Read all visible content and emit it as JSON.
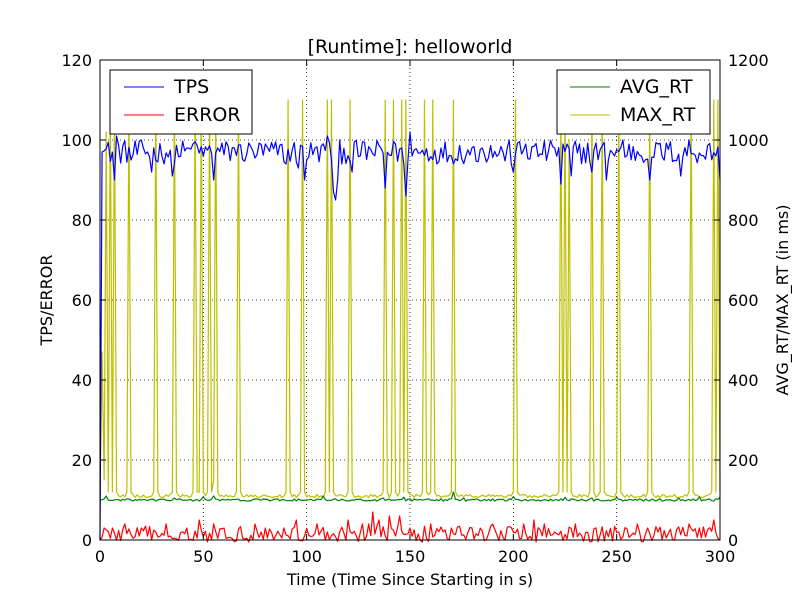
{
  "chart_data": {
    "type": "line",
    "title": "[Runtime]: helloworld",
    "xlabel": "Time (Time Since Starting in s)",
    "ylabel_left": "TPS/ERROR",
    "ylabel_right": "AVG_RT/MAX_RT (in ms)",
    "xlim": [
      0,
      300
    ],
    "ylim_left": [
      0,
      120
    ],
    "ylim_right": [
      0,
      1200
    ],
    "x_ticks": [
      "0",
      "50",
      "100",
      "150",
      "200",
      "250",
      "300"
    ],
    "y_ticks_left": [
      "0",
      "20",
      "40",
      "60",
      "80",
      "100",
      "120"
    ],
    "y_ticks_right": [
      "0",
      "200",
      "400",
      "600",
      "800",
      "1000",
      "1200"
    ],
    "grid": true,
    "legend_left": {
      "placement": "upper-left",
      "entries": [
        "TPS",
        "ERROR"
      ]
    },
    "legend_right": {
      "placement": "upper-right",
      "entries": [
        "AVG_RT",
        "MAX_RT"
      ]
    },
    "x_step": 1,
    "series": [
      {
        "name": "TPS",
        "axis": "left",
        "color": "#0000ff",
        "baseline": 97,
        "jitter": 3,
        "overrides": [
          [
            0,
            0
          ],
          [
            1,
            97
          ],
          [
            7,
            90
          ],
          [
            8,
            101
          ],
          [
            15,
            95
          ],
          [
            25,
            92
          ],
          [
            35,
            91
          ],
          [
            45,
            99
          ],
          [
            55,
            90
          ],
          [
            65,
            98
          ],
          [
            90,
            94
          ],
          [
            96,
            93
          ],
          [
            99,
            90
          ],
          [
            104,
            98
          ],
          [
            110,
            101
          ],
          [
            112,
            95
          ],
          [
            113,
            87
          ],
          [
            114,
            85
          ],
          [
            115,
            90
          ],
          [
            122,
            92
          ],
          [
            138,
            88
          ],
          [
            143,
            99
          ],
          [
            147,
            94
          ],
          [
            148,
            86
          ],
          [
            150,
            102
          ],
          [
            151,
            96
          ],
          [
            165,
            98
          ],
          [
            170,
            96
          ],
          [
            185,
            98
          ],
          [
            195,
            97
          ],
          [
            199,
            94
          ],
          [
            200,
            92
          ],
          [
            206,
            99
          ],
          [
            220,
            98
          ],
          [
            223,
            89
          ],
          [
            228,
            91
          ],
          [
            238,
            92
          ],
          [
            245,
            90
          ],
          [
            253,
            100
          ],
          [
            266,
            90
          ],
          [
            270,
            99
          ],
          [
            281,
            91
          ],
          [
            285,
            100
          ],
          [
            300,
            90
          ]
        ]
      },
      {
        "name": "ERROR",
        "axis": "left",
        "color": "#ff0000",
        "baseline": 1.5,
        "jitter": 2,
        "overrides": [
          [
            0,
            0
          ],
          [
            2,
            3
          ],
          [
            12,
            4
          ],
          [
            20,
            3
          ],
          [
            32,
            4
          ],
          [
            42,
            3
          ],
          [
            48,
            5
          ],
          [
            55,
            4
          ],
          [
            60,
            3
          ],
          [
            75,
            4
          ],
          [
            80,
            3
          ],
          [
            95,
            5
          ],
          [
            105,
            4
          ],
          [
            110,
            2
          ],
          [
            120,
            5
          ],
          [
            127,
            4
          ],
          [
            129,
            1
          ],
          [
            130,
            4
          ],
          [
            132,
            7
          ],
          [
            135,
            5
          ],
          [
            140,
            6
          ],
          [
            145,
            6
          ],
          [
            150,
            3
          ],
          [
            160,
            4
          ],
          [
            170,
            3
          ],
          [
            180,
            3
          ],
          [
            190,
            4
          ],
          [
            200,
            2
          ],
          [
            205,
            4
          ],
          [
            210,
            5
          ],
          [
            215,
            4
          ],
          [
            220,
            2
          ],
          [
            230,
            4
          ],
          [
            240,
            3
          ],
          [
            250,
            2
          ],
          [
            260,
            4
          ],
          [
            265,
            3
          ],
          [
            270,
            2
          ],
          [
            285,
            4
          ],
          [
            290,
            3
          ],
          [
            297,
            5
          ],
          [
            300,
            0
          ]
        ]
      },
      {
        "name": "AVG_RT",
        "axis": "right",
        "color": "#008000",
        "baseline": 100,
        "jitter": 3,
        "overrides": [
          [
            0,
            100
          ],
          [
            3,
            110
          ],
          [
            36,
            105
          ],
          [
            50,
            108
          ],
          [
            55,
            110
          ],
          [
            108,
            110
          ],
          [
            137,
            105
          ],
          [
            147,
            107
          ],
          [
            171,
            120
          ],
          [
            176,
            105
          ],
          [
            200,
            108
          ],
          [
            225,
            107
          ],
          [
            238,
            105
          ],
          [
            250,
            107
          ],
          [
            280,
            105
          ],
          [
            290,
            108
          ],
          [
            298,
            103
          ],
          [
            300,
            107
          ]
        ]
      },
      {
        "name": "MAX_RT",
        "axis": "right",
        "color": "#bfbf00",
        "baseline": 110,
        "jitter": 4,
        "overrides": [
          [
            0,
            110
          ],
          [
            1,
            470
          ],
          [
            2,
            150
          ],
          [
            3,
            1020
          ],
          [
            4,
            120
          ],
          [
            5,
            1100
          ],
          [
            6,
            120
          ],
          [
            7,
            1100
          ],
          [
            8,
            120
          ],
          [
            13,
            120
          ],
          [
            14,
            1100
          ],
          [
            15,
            120
          ],
          [
            26,
            120
          ],
          [
            27,
            1100
          ],
          [
            28,
            120
          ],
          [
            35,
            120
          ],
          [
            36,
            1100
          ],
          [
            37,
            120
          ],
          [
            45,
            120
          ],
          [
            46,
            1100
          ],
          [
            47,
            120
          ],
          [
            48,
            120
          ],
          [
            49,
            1100
          ],
          [
            50,
            120
          ],
          [
            52,
            120
          ],
          [
            53,
            1100
          ],
          [
            54,
            120
          ],
          [
            55,
            150
          ],
          [
            56,
            1100
          ],
          [
            57,
            120
          ],
          [
            66,
            120
          ],
          [
            67,
            1100
          ],
          [
            68,
            120
          ],
          [
            90,
            120
          ],
          [
            91,
            1100
          ],
          [
            92,
            120
          ],
          [
            97,
            120
          ],
          [
            98,
            1100
          ],
          [
            99,
            120
          ],
          [
            109,
            120
          ],
          [
            110,
            1100
          ],
          [
            111,
            120
          ],
          [
            112,
            1100
          ],
          [
            113,
            120
          ],
          [
            120,
            120
          ],
          [
            121,
            1100
          ],
          [
            122,
            120
          ],
          [
            137,
            120
          ],
          [
            138,
            1100
          ],
          [
            139,
            120
          ],
          [
            141,
            120
          ],
          [
            142,
            1100
          ],
          [
            143,
            120
          ],
          [
            145,
            120
          ],
          [
            146,
            1100
          ],
          [
            147,
            120
          ],
          [
            148,
            1100
          ],
          [
            149,
            120
          ],
          [
            156,
            120
          ],
          [
            157,
            1100
          ],
          [
            158,
            120
          ],
          [
            160,
            120
          ],
          [
            161,
            1100
          ],
          [
            162,
            120
          ],
          [
            170,
            120
          ],
          [
            171,
            1100
          ],
          [
            172,
            120
          ],
          [
            200,
            120
          ],
          [
            201,
            1100
          ],
          [
            202,
            120
          ],
          [
            222,
            120
          ],
          [
            223,
            1100
          ],
          [
            224,
            120
          ],
          [
            225,
            1100
          ],
          [
            226,
            120
          ],
          [
            227,
            1000
          ],
          [
            228,
            120
          ],
          [
            237,
            120
          ],
          [
            238,
            1100
          ],
          [
            239,
            120
          ],
          [
            242,
            120
          ],
          [
            243,
            1100
          ],
          [
            244,
            120
          ],
          [
            250,
            120
          ],
          [
            251,
            1100
          ],
          [
            252,
            120
          ],
          [
            265,
            120
          ],
          [
            266,
            1100
          ],
          [
            267,
            120
          ],
          [
            285,
            120
          ],
          [
            286,
            1100
          ],
          [
            287,
            120
          ],
          [
            296,
            120
          ],
          [
            297,
            1100
          ],
          [
            298,
            120
          ],
          [
            299,
            1100
          ],
          [
            300,
            120
          ]
        ]
      }
    ]
  }
}
